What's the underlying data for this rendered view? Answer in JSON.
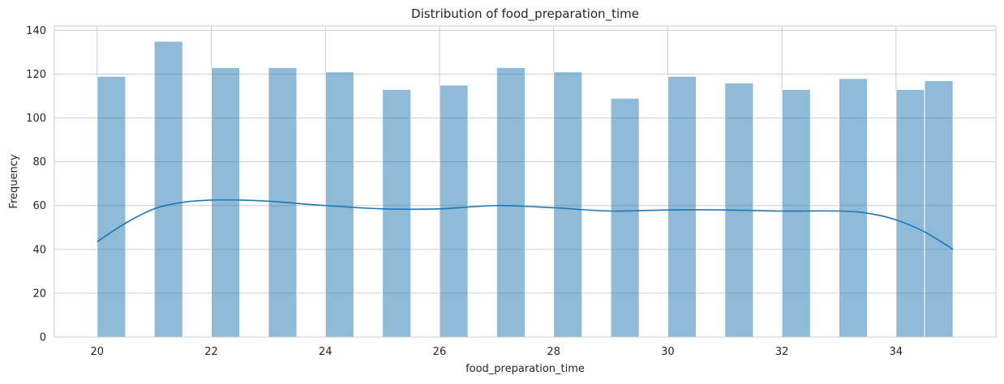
{
  "chart_data": {
    "type": "bar",
    "title": "Distribution of food_preparation_time",
    "xlabel": "food_preparation_time",
    "ylabel": "Frequency",
    "xlim": [
      19.25,
      35.75
    ],
    "ylim": [
      0,
      142
    ],
    "xticks": [
      20,
      22,
      24,
      26,
      28,
      30,
      32,
      34
    ],
    "yticks": [
      0,
      20,
      40,
      60,
      80,
      100,
      120,
      140
    ],
    "grid": true,
    "bars": [
      {
        "x0": 20.0,
        "x1": 20.5,
        "value": 119
      },
      {
        "x0": 21.0,
        "x1": 21.5,
        "value": 135
      },
      {
        "x0": 22.0,
        "x1": 22.5,
        "value": 123
      },
      {
        "x0": 23.0,
        "x1": 23.5,
        "value": 123
      },
      {
        "x0": 24.0,
        "x1": 24.5,
        "value": 121
      },
      {
        "x0": 25.0,
        "x1": 25.5,
        "value": 113
      },
      {
        "x0": 26.0,
        "x1": 26.5,
        "value": 115
      },
      {
        "x0": 27.0,
        "x1": 27.5,
        "value": 123
      },
      {
        "x0": 28.0,
        "x1": 28.5,
        "value": 121
      },
      {
        "x0": 29.0,
        "x1": 29.5,
        "value": 109
      },
      {
        "x0": 30.0,
        "x1": 30.5,
        "value": 119
      },
      {
        "x0": 31.0,
        "x1": 31.5,
        "value": 116
      },
      {
        "x0": 32.0,
        "x1": 32.5,
        "value": 113
      },
      {
        "x0": 33.0,
        "x1": 33.5,
        "value": 118
      },
      {
        "x0": 34.0,
        "x1": 34.5,
        "value": 113
      },
      {
        "x0": 34.5,
        "x1": 35.0,
        "value": 117
      }
    ],
    "kde": {
      "x": [
        20,
        20.5,
        21,
        21.5,
        22,
        22.5,
        23,
        23.5,
        24,
        25,
        26,
        27,
        28,
        29,
        30,
        31,
        32,
        33,
        33.5,
        34,
        34.5,
        35
      ],
      "y": [
        43.5,
        52,
        58.5,
        61.5,
        62.5,
        62.5,
        62,
        61,
        60,
        58.5,
        58.5,
        60,
        59,
        57.5,
        58,
        58,
        57.5,
        57.5,
        56.5,
        53.5,
        48,
        40
      ]
    },
    "colors": {
      "bar_fill": "#1f77b4",
      "bar_opacity": 0.5,
      "kde_line": "#1f77b4",
      "grid": "#cccccc",
      "axes_edge": "#cccccc"
    }
  }
}
